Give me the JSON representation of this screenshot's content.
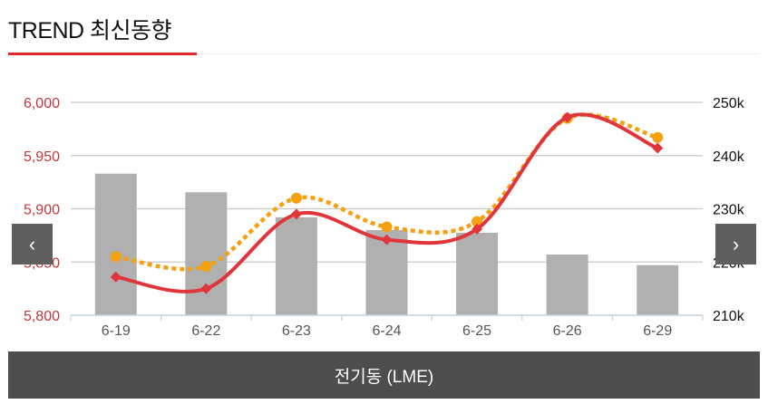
{
  "header": {
    "title": "TREND 최신동향"
  },
  "nav": {
    "prev": "‹",
    "next": "›"
  },
  "footer": {
    "label": "전기동 (LME)"
  },
  "colors": {
    "line_main": "#e0353a",
    "line_dotted": "#f5a00f",
    "bars": "#b0b0b0",
    "left_axis": "#c0383b"
  },
  "chart_data": {
    "type": "bar+line",
    "categories": [
      "6-19",
      "6-22",
      "6-23",
      "6-24",
      "6-25",
      "6-26",
      "6-29"
    ],
    "left_axis": {
      "ylim": [
        5800,
        6000
      ],
      "ticks": [
        "5,800",
        "5,850",
        "5,900",
        "5,950",
        "6,000"
      ]
    },
    "right_axis": {
      "ylim": [
        210,
        250
      ],
      "ticks": [
        "210k",
        "220k",
        "230k",
        "240k",
        "250k"
      ]
    },
    "series": [
      {
        "name": "bars",
        "type": "bar",
        "axis": "right",
        "values": [
          236.6,
          233.1,
          228.4,
          226.0,
          225.5,
          221.4,
          219.4
        ]
      },
      {
        "name": "solid-line",
        "type": "line",
        "axis": "left",
        "marker": "diamond",
        "values": [
          5836,
          5825,
          5895,
          5871,
          5881,
          5986,
          5957
        ]
      },
      {
        "name": "dotted-line",
        "type": "line",
        "axis": "left",
        "marker": "circle",
        "values": [
          5855,
          5846,
          5910,
          5883,
          5888,
          5985,
          5967
        ]
      }
    ],
    "grid": true
  }
}
